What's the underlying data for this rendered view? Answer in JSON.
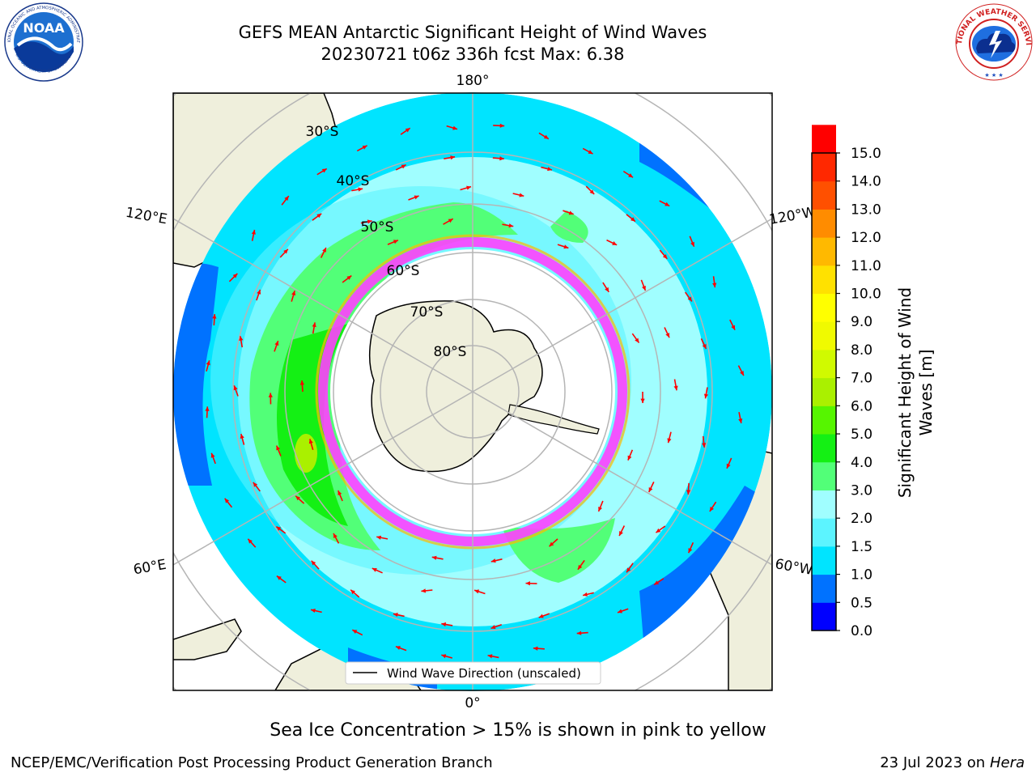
{
  "title": {
    "line1": "GEFS MEAN Antarctic Significant Height of Wind Waves",
    "line2": "20230721 t06z 336h fcst   Max: 6.38"
  },
  "logos": {
    "left": "noaa-logo",
    "left_text": "NOAA",
    "left_ring_top": "NATIONAL OCEANIC AND ATMOSPHERIC ADMINISTRATION",
    "left_ring_bottom": "U.S. DEPARTMENT OF COMMERCE",
    "right": "nws-logo",
    "right_ring": "NATIONAL WEATHER SERVICE"
  },
  "map": {
    "projection": "south-polar-stereographic",
    "longitude_labels": [
      "180°",
      "120°E",
      "120°W",
      "60°E",
      "60°W",
      "0°"
    ],
    "latitude_labels": [
      "30°S",
      "40°S",
      "50°S",
      "60°S",
      "70°S",
      "80°S"
    ],
    "legend": "Wind Wave Direction (unscaled)"
  },
  "colorbar": {
    "label": "Significant Height of Wind Waves [m]",
    "label_line1": "Significant Height of Wind",
    "label_line2": "Waves [m]",
    "ticks": [
      "15.0",
      "14.0",
      "13.0",
      "12.0",
      "11.0",
      "10.0",
      "9.0",
      "8.0",
      "7.0",
      "6.0",
      "5.0",
      "4.0",
      "3.0",
      "2.0",
      "1.5",
      "1.0",
      "0.5",
      "0.0"
    ],
    "colors": [
      "#0000ff",
      "#0072ff",
      "#00e4ff",
      "#5cf4ff",
      "#a0feff",
      "#52ff78",
      "#14f014",
      "#56f500",
      "#aaf000",
      "#d0fa00",
      "#f0fa00",
      "#ffff00",
      "#ffe100",
      "#ffb900",
      "#ff8c00",
      "#ff5000",
      "#ff2800",
      "#ff0000"
    ]
  },
  "footer": {
    "caption": "Sea Ice Concentration > 15% is shown in pink to yellow",
    "credit": "NCEP/EMC/Verification Post Processing Product Generation Branch",
    "date_prefix": "23 Jul 2023 on ",
    "date_host": "Hera"
  }
}
